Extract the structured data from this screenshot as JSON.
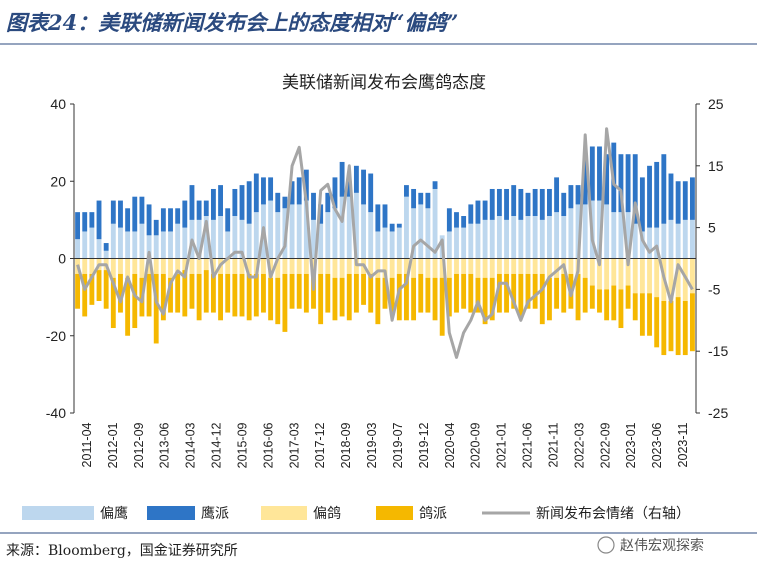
{
  "header": {
    "title": "图表24：美联储新闻发布会上的态度相对“偏鸽”"
  },
  "source": "来源：Bloomberg，国金证券研究所",
  "watermark": "赵伟宏观探索",
  "colors": {
    "title_blue": "#2b4a7f",
    "light_blue": "#bdd7ee",
    "dark_blue": "#2e75c6",
    "light_yellow": "#ffe699",
    "gold": "#f5b800",
    "line_gray": "#a6a6a6"
  },
  "chart_data": {
    "type": "bar",
    "title": "美联储新闻发布会鹰鸽态度",
    "left_axis": {
      "ylim": [
        -40,
        40
      ],
      "ticks": [
        "40",
        "20",
        "0",
        "-20",
        "-40"
      ]
    },
    "right_axis": {
      "ylim": [
        -25,
        25
      ],
      "ticks": [
        "25",
        "15",
        "5",
        "-5",
        "-15",
        "-25"
      ]
    },
    "x_ticks": [
      "2011-04",
      "2012-01",
      "2012-09",
      "2013-06",
      "2014-03",
      "2014-12",
      "2015-09",
      "2016-06",
      "2017-03",
      "2017-12",
      "2018-09",
      "2019-03",
      "2019-07",
      "2019-12",
      "2020-04",
      "2020-09",
      "2021-01",
      "2021-06",
      "2021-11",
      "2022-03",
      "2022-09",
      "2023-01",
      "2023-06",
      "2023-11"
    ],
    "series": [
      {
        "name": "偏鹰",
        "values": [
          5,
          7,
          8,
          5,
          2,
          9,
          8,
          7,
          7,
          9,
          6,
          6,
          7,
          7,
          9,
          8,
          10,
          10,
          11,
          10,
          11,
          7,
          11,
          10,
          9,
          12,
          14,
          15,
          12,
          13,
          14,
          14,
          15,
          10,
          9,
          12,
          13,
          16,
          16,
          17,
          14,
          12,
          7,
          8,
          7,
          8,
          16,
          13,
          14,
          13,
          18,
          6,
          7,
          8,
          8,
          9,
          9,
          10,
          10,
          11,
          10,
          11,
          10,
          11,
          11,
          10,
          11,
          12,
          11,
          13,
          14,
          14,
          15,
          15,
          14,
          12,
          12,
          12,
          9,
          7,
          8,
          8,
          9,
          10,
          9,
          10,
          10
        ]
      },
      {
        "name": "鹰派",
        "values": [
          7,
          5,
          4,
          10,
          2,
          6,
          7,
          6,
          9,
          7,
          8,
          4,
          6,
          6,
          4,
          7,
          9,
          5,
          4,
          8,
          8,
          6,
          7,
          9,
          11,
          10,
          7,
          6,
          5,
          3,
          6,
          7,
          8,
          7,
          5,
          5,
          8,
          9,
          4,
          7,
          9,
          10,
          7,
          6,
          2,
          1,
          3,
          5,
          3,
          4,
          2,
          0,
          6,
          4,
          3,
          5,
          6,
          5,
          8,
          7,
          8,
          8,
          8,
          6,
          7,
          8,
          7,
          9,
          6,
          6,
          5,
          12,
          14,
          14,
          13,
          18,
          15,
          15,
          18,
          14,
          16,
          17,
          18,
          12,
          11,
          10,
          11
        ]
      },
      {
        "name": "偏鸽",
        "values": [
          -4,
          -4,
          -4,
          -3,
          -3,
          -5,
          -4,
          -5,
          -4,
          -5,
          -4,
          -4,
          -4,
          -5,
          -4,
          -3,
          -4,
          -4,
          -3,
          -4,
          -4,
          -4,
          -4,
          -4,
          -4,
          -4,
          -4,
          -5,
          -5,
          -4,
          -4,
          -4,
          -4,
          -4,
          -4,
          -4,
          -5,
          -5,
          -4,
          -4,
          -4,
          -4,
          -5,
          -5,
          -5,
          -4,
          -4,
          -5,
          -4,
          -5,
          -5,
          -5,
          -5,
          -4,
          -4,
          -4,
          -5,
          -5,
          -5,
          -4,
          -4,
          -4,
          -4,
          -4,
          -4,
          -4,
          -5,
          -5,
          -4,
          -4,
          -4,
          -5,
          -7,
          -8,
          -8,
          -7,
          -8,
          -7,
          -9,
          -9,
          -9,
          -10,
          -11,
          -11,
          -10,
          -11,
          -9
        ]
      },
      {
        "name": "鸽派",
        "values": [
          -9,
          -11,
          -8,
          -8,
          -10,
          -13,
          -10,
          -15,
          -14,
          -10,
          -11,
          -18,
          -12,
          -9,
          -10,
          -12,
          -9,
          -12,
          -11,
          -10,
          -12,
          -10,
          -11,
          -11,
          -12,
          -11,
          -10,
          -11,
          -12,
          -15,
          -9,
          -9,
          -10,
          -9,
          -13,
          -10,
          -11,
          -10,
          -12,
          -10,
          -8,
          -10,
          -12,
          -8,
          -9,
          -12,
          -12,
          -11,
          -10,
          -9,
          -11,
          -15,
          -10,
          -10,
          -9,
          -10,
          -9,
          -12,
          -11,
          -10,
          -10,
          -9,
          -11,
          -9,
          -9,
          -13,
          -11,
          -8,
          -10,
          -9,
          -12,
          -9,
          -6,
          -6,
          -8,
          -9,
          -10,
          -6,
          -7,
          -11,
          -11,
          -13,
          -14,
          -13,
          -15,
          -14,
          -15
        ]
      },
      {
        "name": "新闻发布会情绪（右轴）",
        "values": [
          -1,
          -5,
          -3,
          -1,
          -1,
          -4,
          -7,
          -3,
          -6,
          -7,
          1,
          -7,
          -9,
          -4,
          -2,
          -3,
          3,
          0,
          6,
          -3,
          -1,
          0,
          1,
          1,
          -3,
          -3,
          5,
          -3,
          0,
          2,
          15,
          18,
          9,
          -5,
          11,
          12,
          8,
          6,
          15,
          -1,
          -1,
          -3,
          -2,
          -2,
          -10,
          -5,
          -4,
          2,
          3,
          2,
          1,
          3,
          -12,
          -16,
          -12,
          -10,
          -7,
          -10,
          -9,
          -4,
          -4,
          -7,
          -10,
          -7,
          -6,
          -5,
          -3,
          -2,
          -1,
          -6,
          -2,
          20,
          3,
          -1,
          21,
          12,
          11,
          -1,
          9,
          3,
          1,
          2,
          -3,
          -7,
          -1,
          -3,
          -5
        ]
      }
    ]
  },
  "legend": [
    "偏鹰",
    "鹰派",
    "偏鸽",
    "鸽派",
    "新闻发布会情绪（右轴）"
  ]
}
